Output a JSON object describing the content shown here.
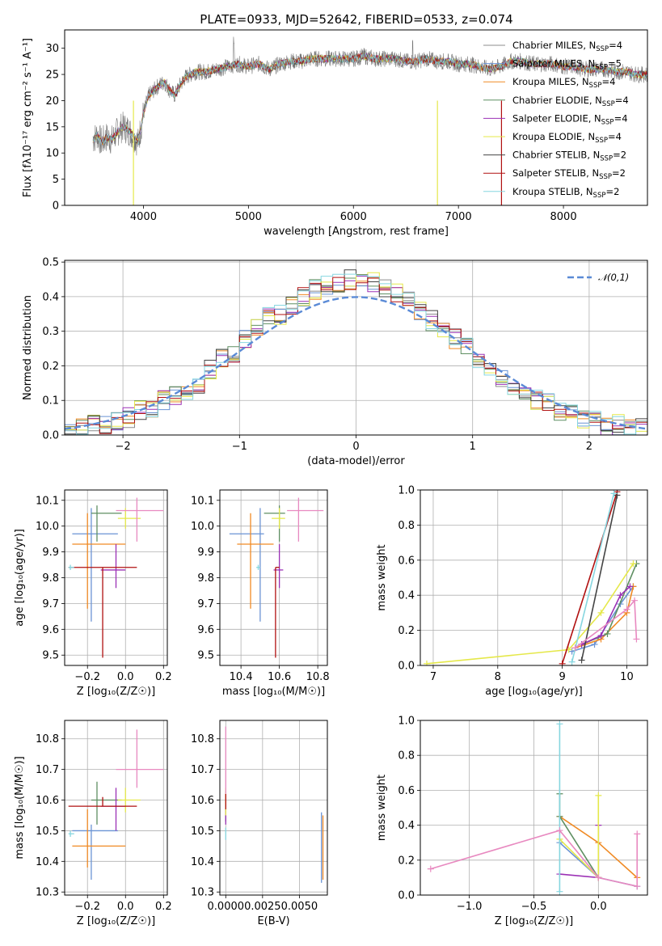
{
  "figure_title": "PLATE=0933, MJD=52642, FIBERID=0533, z=0.074",
  "colors": {
    "chabrier_miles": "#8c8c8c",
    "salpeter_miles": "#6a93d4",
    "kroupa_miles": "#f08a24",
    "chabrier_elodie": "#5f8f62",
    "salpeter_elodie": "#9b30b5",
    "kroupa_elodie": "#e5e84a",
    "chabrier_stelib": "#444444",
    "salpeter_stelib": "#b01010",
    "kroupa_stelib": "#86d6e0",
    "extra": "#e889c0",
    "normal": "#5a8ad6"
  },
  "chart_data": [
    {
      "id": "spectrum",
      "type": "line",
      "xlabel": "wavelength [Angstrom, rest frame]",
      "ylabel": "Flux [fλ10⁻¹⁷ erg cm⁻² s⁻¹ A⁻¹]",
      "xlim": [
        3250,
        8800
      ],
      "ylim": [
        0,
        33.5
      ],
      "xticks": [
        4000,
        5000,
        6000,
        7000,
        8000
      ],
      "yticks": [
        0,
        5,
        10,
        15,
        20,
        25,
        30
      ],
      "grid": false,
      "legend": "top-right",
      "legend_entries": [
        "Chabrier MILES, N_SSP=4",
        "Salpeter MILES, N_SSP=5",
        "Kroupa MILES, N_SSP=4",
        "Chabrier ELODIE, N_SSP=4",
        "Salpeter ELODIE, N_SSP=4",
        "Kroupa ELODIE, N_SSP=4",
        "Chabrier STELIB, N_SSP=2",
        "Salpeter STELIB, N_SSP=2",
        "Kroupa STELIB, N_SSP=2"
      ],
      "legend_labels": [
        {
          "pre": "Chabrier MILES, N",
          "sub": "SSP",
          "post": "=4"
        },
        {
          "pre": "Salpeter MILES, N",
          "sub": "SSP",
          "post": "=5"
        },
        {
          "pre": "Kroupa MILES, N",
          "sub": "SSP",
          "post": "=4"
        },
        {
          "pre": "Chabrier ELODIE, N",
          "sub": "SSP",
          "post": "=4"
        },
        {
          "pre": "Salpeter ELODIE, N",
          "sub": "SSP",
          "post": "=4"
        },
        {
          "pre": "Kroupa ELODIE, N",
          "sub": "SSP",
          "post": "=4"
        },
        {
          "pre": "Chabrier STELIB, N",
          "sub": "SSP",
          "post": "=2"
        },
        {
          "pre": "Salpeter STELIB, N",
          "sub": "SSP",
          "post": "=2"
        },
        {
          "pre": "Kroupa STELIB, N",
          "sub": "SSP",
          "post": "=2"
        }
      ],
      "x": [
        3520,
        3560,
        3600,
        3650,
        3700,
        3750,
        3800,
        3850,
        3900,
        3950,
        4000,
        4050,
        4100,
        4150,
        4200,
        4250,
        4300,
        4350,
        4400,
        4450,
        4500,
        4600,
        4700,
        4800,
        4900,
        5000,
        5100,
        5200,
        5300,
        5400,
        5500,
        5600,
        5700,
        5800,
        5900,
        6000,
        6100,
        6200,
        6300,
        6400,
        6500,
        6600,
        6700,
        6800,
        6900,
        7000,
        7100,
        7200,
        7300,
        7400,
        7500,
        7600,
        7700,
        7800,
        7900,
        8000,
        8100,
        8200,
        8300,
        8400,
        8500,
        8600,
        8700,
        8800
      ],
      "y": [
        12.5,
        13.5,
        12.0,
        13.0,
        12.5,
        14.0,
        15.0,
        14.5,
        13.5,
        12.0,
        17.5,
        21.0,
        22.0,
        23.0,
        23.5,
        22.0,
        21.0,
        23.0,
        24.5,
        25.0,
        25.5,
        25.5,
        26.0,
        26.5,
        27.0,
        26.5,
        27.0,
        26.0,
        27.0,
        27.5,
        27.5,
        28.0,
        28.0,
        28.0,
        28.0,
        28.0,
        28.5,
        28.0,
        28.0,
        28.0,
        27.5,
        27.5,
        28.0,
        27.5,
        27.5,
        27.0,
        27.0,
        26.5,
        26.0,
        26.5,
        27.5,
        27.5,
        27.0,
        27.0,
        27.0,
        26.5,
        26.5,
        26.0,
        26.0,
        26.0,
        25.5,
        25.5,
        25.0,
        25.0
      ]
    },
    {
      "id": "residuals",
      "type": "line",
      "xlabel": "(data-model)/error",
      "ylabel": "Normed distribution",
      "xlim": [
        -2.5,
        2.5
      ],
      "ylim": [
        0,
        0.505
      ],
      "xticks": [
        -2,
        -1,
        0,
        1,
        2
      ],
      "yticks": [
        0.0,
        0.1,
        0.2,
        0.3,
        0.4,
        0.5
      ],
      "grid": true,
      "legend": "top-right",
      "reference_curve": "𝒩(0,1)",
      "bin_width": 0.1,
      "hist_centers": [
        -2.45,
        -2.35,
        -2.25,
        -2.15,
        -2.05,
        -1.95,
        -1.85,
        -1.75,
        -1.65,
        -1.55,
        -1.45,
        -1.35,
        -1.25,
        -1.15,
        -1.05,
        -0.95,
        -0.85,
        -0.75,
        -0.65,
        -0.55,
        -0.45,
        -0.35,
        -0.25,
        -0.15,
        -0.05,
        0.05,
        0.15,
        0.25,
        0.35,
        0.45,
        0.55,
        0.65,
        0.75,
        0.85,
        0.95,
        1.05,
        1.15,
        1.25,
        1.35,
        1.45,
        1.55,
        1.65,
        1.75,
        1.85,
        1.95,
        2.05,
        2.15,
        2.25,
        2.35,
        2.45
      ],
      "hist_values": [
        0.02,
        0.02,
        0.03,
        0.03,
        0.04,
        0.05,
        0.07,
        0.08,
        0.1,
        0.11,
        0.13,
        0.15,
        0.19,
        0.22,
        0.24,
        0.28,
        0.31,
        0.34,
        0.35,
        0.37,
        0.4,
        0.42,
        0.43,
        0.44,
        0.45,
        0.46,
        0.44,
        0.42,
        0.41,
        0.39,
        0.36,
        0.33,
        0.3,
        0.28,
        0.25,
        0.22,
        0.18,
        0.16,
        0.14,
        0.12,
        0.1,
        0.09,
        0.07,
        0.06,
        0.05,
        0.04,
        0.03,
        0.03,
        0.02,
        0.02
      ]
    },
    {
      "id": "age-vs-Z",
      "type": "scatter",
      "xlabel": "Z [log₁₀(Z/Z☉)]",
      "ylabel": "age  [log₁₀(age/yr)]",
      "xlim": [
        -0.32,
        0.22
      ],
      "ylim": [
        9.46,
        10.14
      ],
      "xticks": [
        -0.2,
        0.0,
        0.2
      ],
      "yticks": [
        9.5,
        9.6,
        9.7,
        9.8,
        9.9,
        10.0,
        10.1
      ],
      "grid": true,
      "points": [
        {
          "color": "#6a93d4",
          "x": -0.18,
          "xl": -0.28,
          "xh": -0.04,
          "y": 9.97,
          "yl": 9.63,
          "yh": 10.07
        },
        {
          "color": "#f08a24",
          "x": -0.2,
          "xl": -0.28,
          "xh": 0.0,
          "y": 9.93,
          "yl": 9.68,
          "yh": 10.05
        },
        {
          "color": "#5f8f62",
          "x": -0.15,
          "xl": -0.18,
          "xh": -0.02,
          "y": 10.05,
          "yl": 9.94,
          "yh": 10.08
        },
        {
          "color": "#9b30b5",
          "x": -0.05,
          "xl": -0.13,
          "xh": 0.0,
          "y": 9.83,
          "yl": 9.76,
          "yh": 9.93
        },
        {
          "color": "#e5e84a",
          "x": 0.0,
          "xl": -0.04,
          "xh": 0.08,
          "y": 10.03,
          "yl": 9.99,
          "yh": 10.07
        },
        {
          "color": "#b01010",
          "x": -0.12,
          "xl": -0.3,
          "xh": 0.06,
          "y": 9.84,
          "yl": 9.49,
          "yh": 9.84
        },
        {
          "color": "#86d6e0",
          "x": -0.29,
          "xl": -0.3,
          "xh": -0.27,
          "y": 9.84,
          "yl": 9.83,
          "yh": 9.85
        },
        {
          "color": "#e889c0",
          "x": 0.06,
          "xl": -0.05,
          "xh": 0.2,
          "y": 10.06,
          "yl": 9.94,
          "yh": 10.11
        }
      ]
    },
    {
      "id": "age-vs-mass",
      "type": "scatter",
      "xlabel": "mass [log₁₀(M/M☉)]",
      "ylabel": "",
      "xlim": [
        10.29,
        10.85
      ],
      "ylim": [
        9.46,
        10.14
      ],
      "xticks": [
        10.4,
        10.6,
        10.8
      ],
      "yticks": [
        9.5,
        9.6,
        9.7,
        9.8,
        9.9,
        10.0,
        10.1
      ],
      "grid": true,
      "points": [
        {
          "color": "#6a93d4",
          "x": 10.5,
          "xl": 10.34,
          "xh": 10.52,
          "y": 9.97,
          "yl": 9.63,
          "yh": 10.07
        },
        {
          "color": "#f08a24",
          "x": 10.45,
          "xl": 10.38,
          "xh": 10.57,
          "y": 9.93,
          "yl": 9.68,
          "yh": 10.05
        },
        {
          "color": "#5f8f62",
          "x": 10.6,
          "xl": 10.52,
          "xh": 10.63,
          "y": 10.05,
          "yl": 9.94,
          "yh": 10.08
        },
        {
          "color": "#9b30b5",
          "x": 10.6,
          "xl": 10.57,
          "xh": 10.62,
          "y": 9.83,
          "yl": 9.76,
          "yh": 9.93
        },
        {
          "color": "#e5e84a",
          "x": 10.6,
          "xl": 10.56,
          "xh": 10.63,
          "y": 10.03,
          "yl": 9.99,
          "yh": 10.07
        },
        {
          "color": "#b01010",
          "x": 10.58,
          "xl": 10.58,
          "xh": 10.6,
          "y": 9.84,
          "yl": 9.49,
          "yh": 9.84
        },
        {
          "color": "#86d6e0",
          "x": 10.49,
          "xl": 10.48,
          "xh": 10.5,
          "y": 9.84,
          "yl": 9.83,
          "yh": 9.85
        },
        {
          "color": "#e889c0",
          "x": 10.7,
          "xl": 10.64,
          "xh": 10.83,
          "y": 10.06,
          "yl": 9.94,
          "yh": 10.11
        }
      ]
    },
    {
      "id": "weight-vs-age",
      "type": "line",
      "xlabel": "age  [log₁₀(age/yr)]",
      "ylabel": "mass weight",
      "xlim": [
        6.8,
        10.32
      ],
      "ylim": [
        0,
        1.0
      ],
      "xticks": [
        7,
        8,
        9,
        10
      ],
      "yticks": [
        0.0,
        0.2,
        0.4,
        0.6,
        0.8,
        1.0
      ],
      "grid": true,
      "series": [
        {
          "color": "#6a93d4",
          "x": [
            9.15,
            9.5,
            9.9,
            10.1
          ],
          "y": [
            0.08,
            0.12,
            0.35,
            0.45
          ]
        },
        {
          "color": "#f08a24",
          "x": [
            9.2,
            9.6,
            10.0,
            10.1
          ],
          "y": [
            0.1,
            0.15,
            0.3,
            0.45
          ]
        },
        {
          "color": "#5f8f62",
          "x": [
            9.3,
            9.7,
            10.15
          ],
          "y": [
            0.12,
            0.18,
            0.58
          ]
        },
        {
          "color": "#9b30b5",
          "x": [
            9.3,
            9.6,
            9.9,
            10.05
          ],
          "y": [
            0.12,
            0.17,
            0.4,
            0.45
          ]
        },
        {
          "color": "#e5e84a",
          "x": [
            6.9,
            9.1,
            9.6,
            10.1
          ],
          "y": [
            0.01,
            0.09,
            0.3,
            0.58
          ]
        },
        {
          "color": "#b01010",
          "x": [
            9.0,
            9.85
          ],
          "y": [
            0.01,
            0.99
          ]
        },
        {
          "color": "#444444",
          "x": [
            9.3,
            9.85
          ],
          "y": [
            0.03,
            0.97
          ]
        },
        {
          "color": "#86d6e0",
          "x": [
            9.15,
            9.8
          ],
          "y": [
            0.02,
            0.98
          ]
        },
        {
          "color": "#e889c0",
          "x": [
            9.2,
            10.0,
            10.12,
            10.15
          ],
          "y": [
            0.1,
            0.32,
            0.37,
            0.15
          ]
        }
      ]
    },
    {
      "id": "mass-vs-Z",
      "type": "scatter",
      "xlabel": "Z [log₁₀(Z/Z☉)]",
      "ylabel": "mass [log₁₀(M/M☉)]",
      "xlim": [
        -0.32,
        0.22
      ],
      "ylim": [
        10.29,
        10.86
      ],
      "xticks": [
        -0.2,
        0.0,
        0.2
      ],
      "yticks": [
        10.3,
        10.4,
        10.5,
        10.6,
        10.7,
        10.8
      ],
      "grid": true,
      "points": [
        {
          "color": "#6a93d4",
          "x": -0.18,
          "xl": -0.28,
          "xh": -0.04,
          "y": 10.5,
          "yl": 10.34,
          "yh": 10.52
        },
        {
          "color": "#f08a24",
          "x": -0.2,
          "xl": -0.28,
          "xh": 0.0,
          "y": 10.45,
          "yl": 10.38,
          "yh": 10.57
        },
        {
          "color": "#5f8f62",
          "x": -0.15,
          "xl": -0.18,
          "xh": -0.02,
          "y": 10.6,
          "yl": 10.52,
          "yh": 10.66
        },
        {
          "color": "#9b30b5",
          "x": -0.05,
          "xl": -0.13,
          "xh": 0.0,
          "y": 10.58,
          "yl": 10.5,
          "yh": 10.64
        },
        {
          "color": "#e5e84a",
          "x": 0.0,
          "xl": -0.04,
          "xh": 0.08,
          "y": 10.6,
          "yl": 10.56,
          "yh": 10.64
        },
        {
          "color": "#b01010",
          "x": -0.12,
          "xl": -0.3,
          "xh": 0.06,
          "y": 10.58,
          "yl": 10.58,
          "yh": 10.61
        },
        {
          "color": "#86d6e0",
          "x": -0.29,
          "xl": -0.3,
          "xh": -0.27,
          "y": 10.49,
          "yl": 10.48,
          "yh": 10.5
        },
        {
          "color": "#e889c0",
          "x": 0.06,
          "xl": -0.05,
          "xh": 0.2,
          "y": 10.7,
          "yl": 10.64,
          "yh": 10.83
        }
      ]
    },
    {
      "id": "mass-vs-ebv",
      "type": "scatter",
      "xlabel": "E(B-V)",
      "ylabel": "",
      "xlim": [
        -0.0004,
        0.0069
      ],
      "ylim": [
        10.29,
        10.86
      ],
      "xticks": [
        0.0,
        0.0025,
        0.005
      ],
      "xtick_labels": [
        "0.0000",
        "0.0025",
        "0.0050"
      ],
      "yticks": [
        10.3,
        10.4,
        10.5,
        10.6,
        10.7,
        10.8
      ],
      "grid": true,
      "points": [
        {
          "color": "#6a93d4",
          "x": 0.0065,
          "xl": 0.0065,
          "xh": 0.0065,
          "y": 10.5,
          "yl": 10.33,
          "yh": 10.56
        },
        {
          "color": "#f08a24",
          "x": 0.0066,
          "xl": 0.0066,
          "xh": 0.0066,
          "y": 10.45,
          "yl": 10.34,
          "yh": 10.55
        },
        {
          "color": "#5f8f62",
          "x": 0.0,
          "xl": 0.0,
          "xh": 0.0,
          "y": 10.6,
          "yl": 10.53,
          "yh": 10.63
        },
        {
          "color": "#9b30b5",
          "x": 0.0,
          "xl": 0.0,
          "xh": 0.0,
          "y": 10.58,
          "yl": 10.52,
          "yh": 10.62
        },
        {
          "color": "#e5e84a",
          "x": 0.0,
          "xl": 0.0,
          "xh": 0.0,
          "y": 10.6,
          "yl": 10.55,
          "yh": 10.64
        },
        {
          "color": "#b01010",
          "x": 0.0,
          "xl": 0.0,
          "xh": 0.0,
          "y": 10.6,
          "yl": 10.57,
          "yh": 10.62
        },
        {
          "color": "#86d6e0",
          "x": 0.0,
          "xl": 0.0,
          "xh": 0.0,
          "y": 10.49,
          "yl": 10.47,
          "yh": 10.51
        },
        {
          "color": "#e889c0",
          "x": 0.0,
          "xl": 0.0,
          "xh": 0.0,
          "y": 10.7,
          "yl": 10.62,
          "yh": 10.84
        }
      ]
    },
    {
      "id": "weight-vs-Z",
      "type": "line",
      "xlabel": "Z [log₁₀(Z/Z☉)]",
      "ylabel": "mass weight",
      "xlim": [
        -1.38,
        0.38
      ],
      "ylim": [
        0,
        1.0
      ],
      "xticks": [
        -1.0,
        -0.5,
        0.0
      ],
      "xtick_labels": [
        "−1.0",
        "−0.5",
        "0.0"
      ],
      "yticks": [
        0.0,
        0.2,
        0.4,
        0.6,
        0.8,
        1.0
      ],
      "grid": true,
      "series": [
        {
          "color": "#6a93d4",
          "x": [
            -0.3,
            0.0,
            0.3
          ],
          "y": [
            0.3,
            0.1,
            0.05
          ]
        },
        {
          "color": "#f08a24",
          "x": [
            -0.3,
            0.0,
            0.3
          ],
          "y": [
            0.45,
            0.3,
            0.1
          ]
        },
        {
          "color": "#5f8f62",
          "x": [
            -0.3,
            -0.3,
            0.0
          ],
          "y": [
            0.58,
            0.45,
            0.1
          ]
        },
        {
          "color": "#9b30b5",
          "x": [
            -0.3,
            0.0,
            0.0
          ],
          "y": [
            0.12,
            0.1,
            0.4
          ]
        },
        {
          "color": "#e5e84a",
          "x": [
            -0.3,
            0.0,
            0.0
          ],
          "y": [
            0.32,
            0.1,
            0.57
          ]
        },
        {
          "color": "#86d6e0",
          "x": [
            -0.3,
            -0.3
          ],
          "y": [
            0.02,
            0.98
          ]
        },
        {
          "color": "#e889c0",
          "x": [
            -1.3,
            -0.3,
            0.0,
            0.3,
            0.3
          ],
          "y": [
            0.15,
            0.37,
            0.1,
            0.05,
            0.35
          ]
        }
      ]
    }
  ]
}
